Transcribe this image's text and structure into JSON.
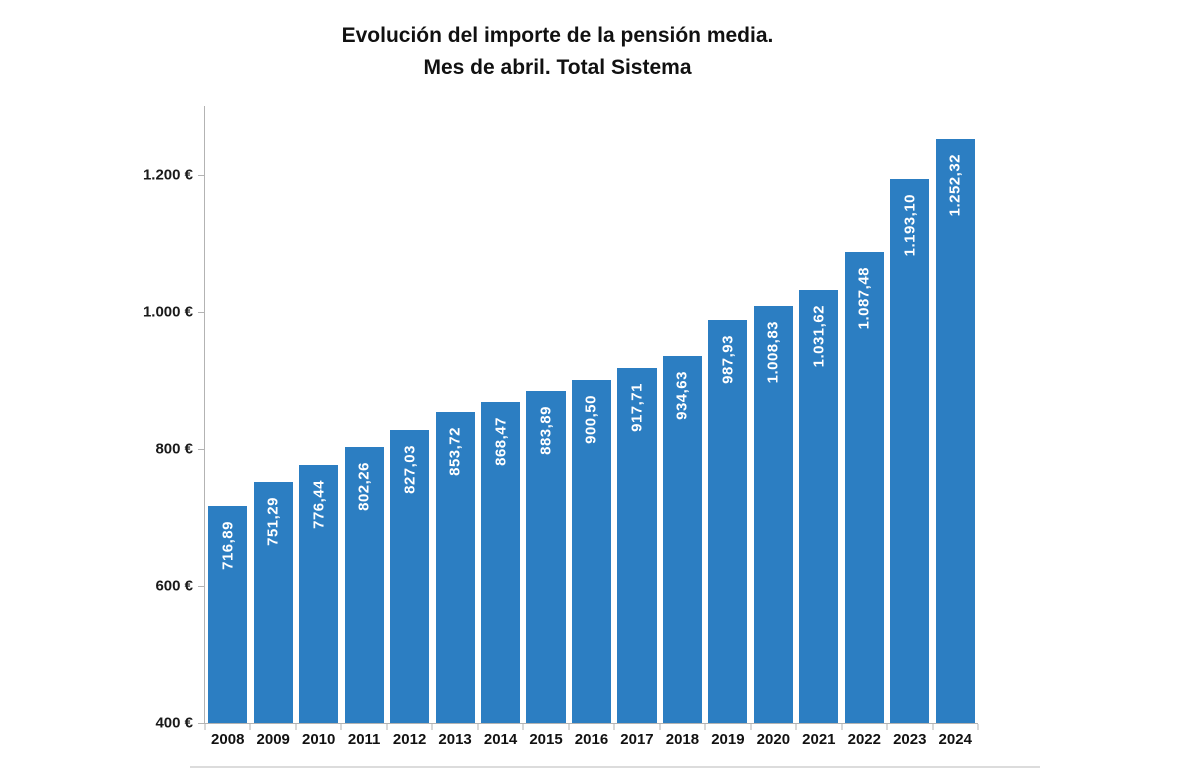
{
  "figure": {
    "title_line1": "Evolución del importe de la pensión media.",
    "title_line2": "Mes de abril. Total Sistema",
    "background": "#ffffff"
  },
  "chart_data": {
    "type": "bar",
    "title": "Evolución del importe de la pensión media. Mes de abril. Total Sistema",
    "xlabel": "",
    "ylabel": "",
    "categories": [
      "2008",
      "2009",
      "2010",
      "2011",
      "2012",
      "2013",
      "2014",
      "2015",
      "2016",
      "2017",
      "2018",
      "2019",
      "2020",
      "2021",
      "2022",
      "2023",
      "2024"
    ],
    "values": [
      716.89,
      751.29,
      776.44,
      802.26,
      827.03,
      853.72,
      868.47,
      883.89,
      900.5,
      917.71,
      934.63,
      987.93,
      1008.83,
      1031.62,
      1087.48,
      1193.1,
      1252.32
    ],
    "value_labels": [
      "716,89",
      "751,29",
      "776,44",
      "802,26",
      "827,03",
      "853,72",
      "868,47",
      "883,89",
      "900,50",
      "917,71",
      "934,63",
      "987,93",
      "1.008,83",
      "1.031,62",
      "1.087,48",
      "1.193,10",
      "1.252,32"
    ],
    "ylim": [
      400,
      1300
    ],
    "yticks": [
      {
        "value": 400,
        "label": "400 €"
      },
      {
        "value": 600,
        "label": "600 €"
      },
      {
        "value": 800,
        "label": "800 €"
      },
      {
        "value": 1000,
        "label": "1.000 €"
      },
      {
        "value": 1200,
        "label": "1.200 €"
      }
    ],
    "grid": false,
    "legend": "none",
    "bar_color": "#2c7ec2",
    "bar_label_color": "#ffffff",
    "axis_color": "#b3b3b3",
    "text_color": "#111111"
  }
}
